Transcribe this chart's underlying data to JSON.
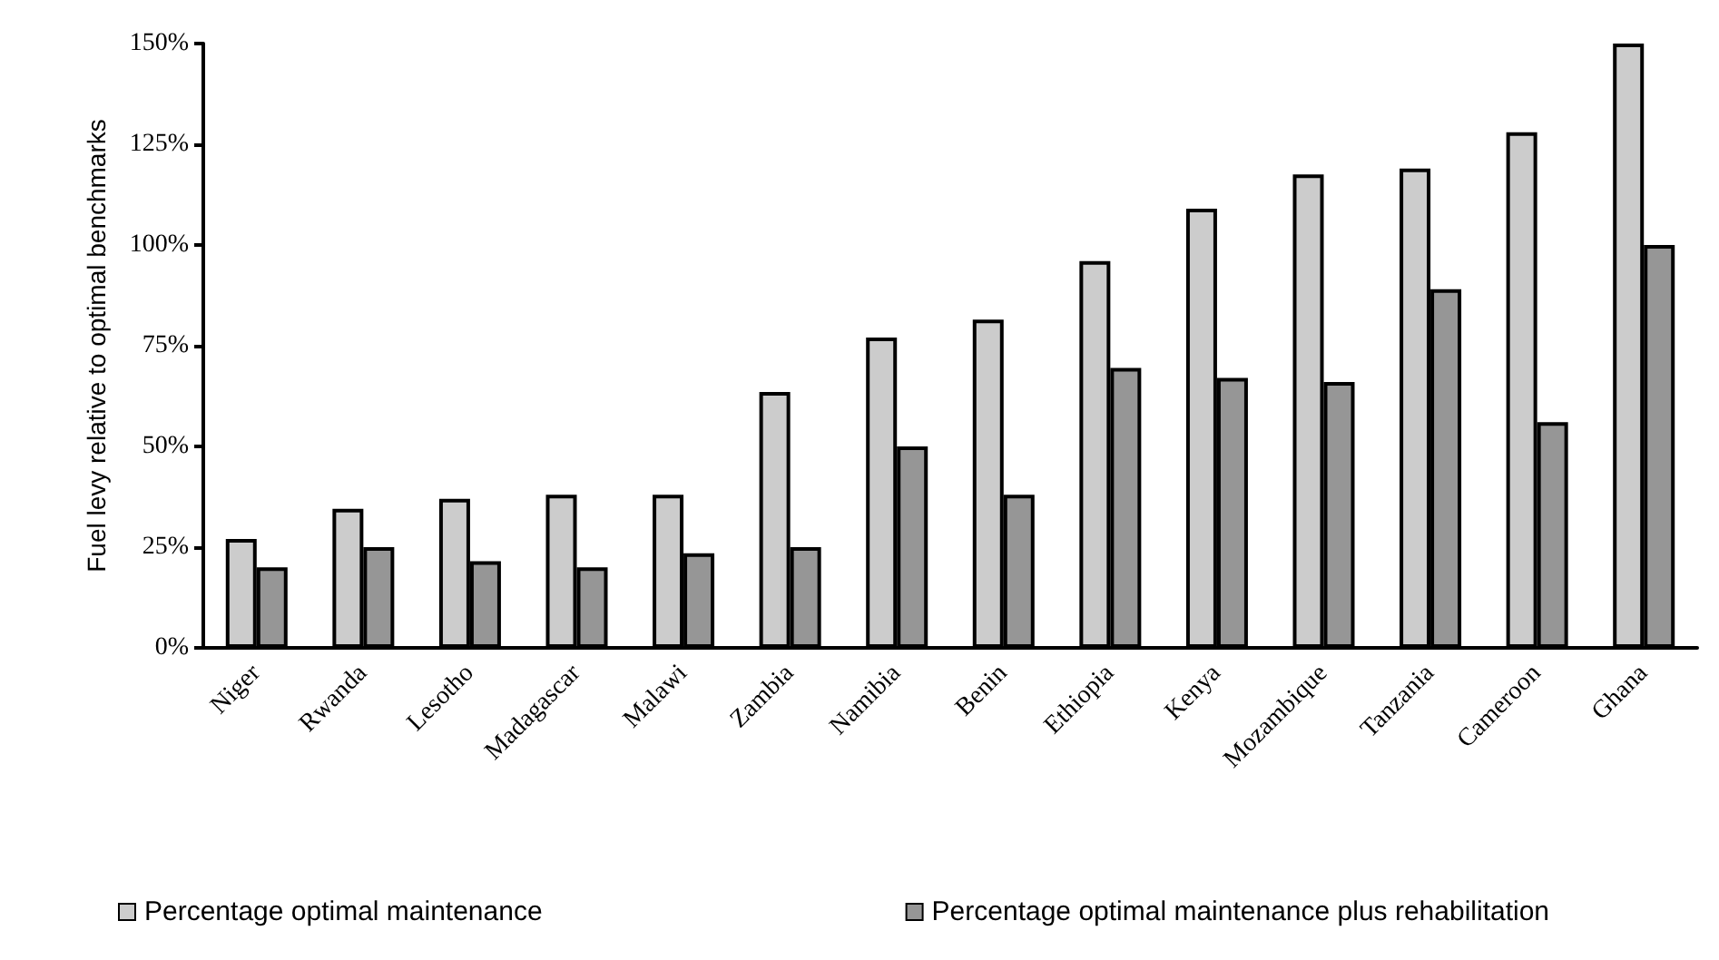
{
  "chart_data": {
    "type": "bar",
    "ylabel": "Fuel levy relative to optimal benchmarks",
    "categories": [
      "Niger",
      "Rwanda",
      "Lesotho",
      "Madagascar",
      "Malawi",
      "Zambia",
      "Namibia",
      "Benin",
      "Ethiopia",
      "Kenya",
      "Mozambique",
      "Tanzania",
      "Cameroon",
      "Ghana"
    ],
    "series": [
      {
        "name": "Percentage optimal maintenance",
        "color": "#cccccc",
        "values": [
          27,
          34.5,
          37,
          38,
          38,
          63.5,
          77,
          81.5,
          96,
          109,
          117.5,
          119,
          128,
          150
        ]
      },
      {
        "name": "Percentage optimal maintenance plus rehabilitation",
        "color": "#969696",
        "values": [
          20,
          25,
          21.5,
          20,
          23.5,
          25,
          50,
          38,
          69.5,
          67,
          66,
          89,
          56,
          100
        ]
      }
    ],
    "ylim": [
      0,
      150
    ],
    "yticks": [
      {
        "value": 0,
        "label": "0%"
      },
      {
        "value": 25,
        "label": "25%"
      },
      {
        "value": 50,
        "label": "50%"
      },
      {
        "value": 75,
        "label": "75%"
      },
      {
        "value": 100,
        "label": "100%"
      },
      {
        "value": 125,
        "label": "125%"
      },
      {
        "value": 150,
        "label": "150%"
      }
    ],
    "grid": false,
    "legend": "bottom"
  }
}
